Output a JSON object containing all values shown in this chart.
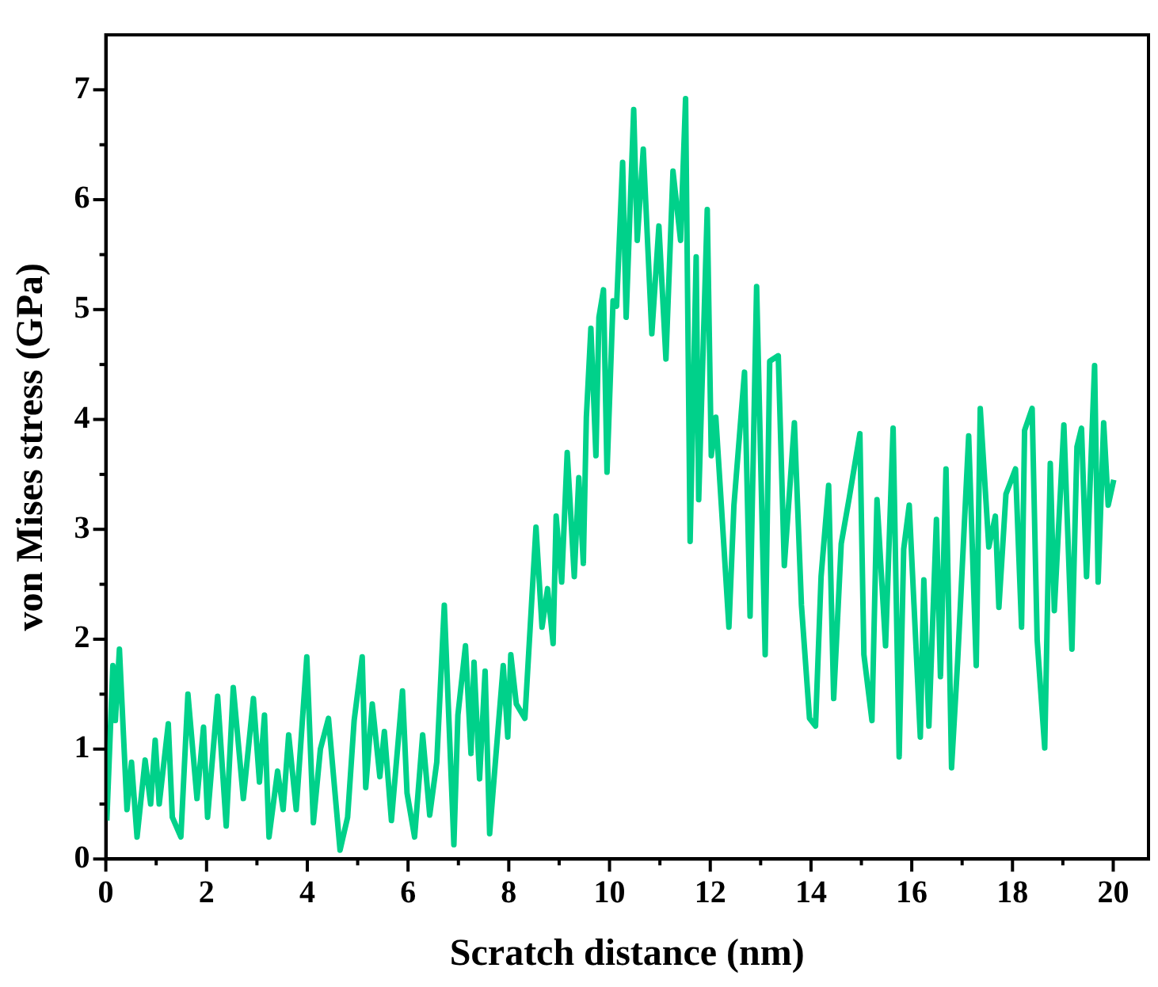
{
  "chart_data": {
    "type": "line",
    "xlabel": "Scratch distance (nm)",
    "ylabel": "von Mises stress (GPa)",
    "xlim": [
      0,
      20.7
    ],
    "ylim": [
      0,
      7.5
    ],
    "xticks": [
      0,
      {
        "value": 1,
        "label": null
      },
      2,
      {
        "value": 3,
        "label": null
      },
      4,
      {
        "value": 5,
        "label": null
      },
      6,
      {
        "value": 7,
        "label": null
      },
      8,
      {
        "value": 9,
        "label": null
      },
      10,
      {
        "value": 11,
        "label": null
      },
      12,
      {
        "value": 13,
        "label": null
      },
      14,
      {
        "value": 15,
        "label": null
      },
      16,
      {
        "value": 17,
        "label": null
      },
      18,
      {
        "value": 19,
        "label": null
      },
      20
    ],
    "yticks": [
      0,
      {
        "value": 0.5,
        "label": null
      },
      1,
      {
        "value": 1.5,
        "label": null
      },
      2,
      {
        "value": 2.5,
        "label": null
      },
      3,
      {
        "value": 3.5,
        "label": null
      },
      4,
      {
        "value": 4.5,
        "label": null
      },
      5,
      {
        "value": 5.5,
        "label": null
      },
      6,
      {
        "value": 6.5,
        "label": null
      },
      7
    ],
    "grid": false,
    "legend": false,
    "marker": "none",
    "line_style": "solid",
    "series": [
      {
        "color": "#00d18a",
        "x": [
          0.02,
          0.14,
          0.19,
          0.27,
          0.42,
          0.51,
          0.62,
          0.78,
          0.89,
          0.98,
          1.06,
          1.24,
          1.32,
          1.49,
          1.63,
          1.81,
          1.94,
          2.02,
          2.22,
          2.39,
          2.53,
          2.73,
          2.93,
          3.05,
          3.15,
          3.24,
          3.41,
          3.52,
          3.63,
          3.78,
          3.99,
          4.12,
          4.26,
          4.42,
          4.65,
          4.8,
          4.93,
          5.09,
          5.16,
          5.29,
          5.44,
          5.53,
          5.67,
          5.89,
          5.98,
          6.13,
          6.29,
          6.43,
          6.57,
          6.72,
          6.91,
          6.99,
          7.14,
          7.25,
          7.31,
          7.42,
          7.53,
          7.62,
          7.73,
          7.89,
          7.98,
          8.04,
          8.15,
          8.32,
          8.54,
          8.66,
          8.77,
          8.88,
          8.94,
          9.05,
          9.16,
          9.3,
          9.39,
          9.48,
          9.54,
          9.63,
          9.73,
          9.79,
          9.88,
          9.95,
          10.07,
          10.14,
          10.26,
          10.33,
          10.48,
          10.55,
          10.67,
          10.84,
          10.98,
          11.12,
          11.26,
          11.41,
          11.51,
          11.6,
          11.72,
          11.77,
          11.94,
          12.02,
          12.11,
          12.22,
          12.37,
          12.47,
          12.68,
          12.79,
          12.92,
          13.09,
          13.18,
          13.35,
          13.47,
          13.67,
          13.81,
          13.97,
          14.09,
          14.2,
          14.35,
          14.45,
          14.6,
          14.76,
          14.97,
          15.05,
          15.21,
          15.31,
          15.48,
          15.63,
          15.75,
          15.84,
          15.95,
          16.17,
          16.24,
          16.34,
          16.49,
          16.57,
          16.68,
          16.79,
          16.91,
          17.13,
          17.28,
          17.36,
          17.53,
          17.66,
          17.73,
          17.87,
          18.06,
          18.18,
          18.24,
          18.39,
          18.49,
          18.64,
          18.75,
          18.83,
          19.02,
          19.18,
          19.28,
          19.37,
          19.47,
          19.63,
          19.7,
          19.81,
          19.9,
          20.01
        ],
        "values": [
          0.35,
          1.76,
          1.26,
          1.91,
          0.45,
          0.88,
          0.2,
          0.9,
          0.5,
          1.08,
          0.5,
          1.23,
          0.38,
          0.2,
          1.5,
          0.55,
          1.2,
          0.38,
          1.48,
          0.3,
          1.56,
          0.55,
          1.46,
          0.7,
          1.31,
          0.2,
          0.8,
          0.45,
          1.13,
          0.45,
          1.84,
          0.33,
          1.0,
          1.28,
          0.08,
          0.38,
          1.26,
          1.84,
          0.65,
          1.41,
          0.75,
          1.16,
          0.35,
          1.53,
          0.6,
          0.2,
          1.13,
          0.4,
          0.88,
          2.31,
          0.13,
          1.31,
          1.94,
          0.96,
          1.79,
          0.73,
          1.71,
          0.23,
          0.86,
          1.76,
          1.11,
          1.86,
          1.41,
          1.28,
          3.02,
          2.11,
          2.46,
          1.96,
          3.12,
          2.52,
          3.7,
          2.57,
          3.47,
          2.69,
          4.02,
          4.83,
          3.67,
          4.93,
          5.18,
          3.52,
          5.08,
          5.03,
          6.34,
          4.93,
          6.82,
          5.63,
          6.46,
          4.78,
          5.76,
          4.55,
          6.26,
          5.63,
          6.92,
          2.89,
          5.48,
          3.27,
          5.91,
          3.67,
          4.02,
          3.22,
          2.11,
          3.22,
          4.43,
          2.21,
          5.21,
          1.86,
          4.53,
          4.58,
          2.67,
          3.97,
          2.31,
          1.28,
          1.21,
          2.57,
          3.4,
          1.46,
          2.87,
          3.29,
          3.87,
          1.86,
          1.26,
          3.27,
          1.94,
          3.92,
          0.93,
          2.82,
          3.22,
          1.11,
          2.54,
          1.21,
          3.09,
          1.66,
          3.55,
          0.83,
          1.79,
          3.85,
          1.76,
          4.1,
          2.84,
          3.12,
          2.29,
          3.32,
          3.55,
          2.11,
          3.9,
          4.1,
          1.99,
          1.01,
          3.6,
          2.26,
          3.95,
          1.91,
          3.75,
          3.92,
          2.57,
          4.49,
          2.52,
          3.97,
          3.22,
          3.45
        ]
      }
    ]
  }
}
